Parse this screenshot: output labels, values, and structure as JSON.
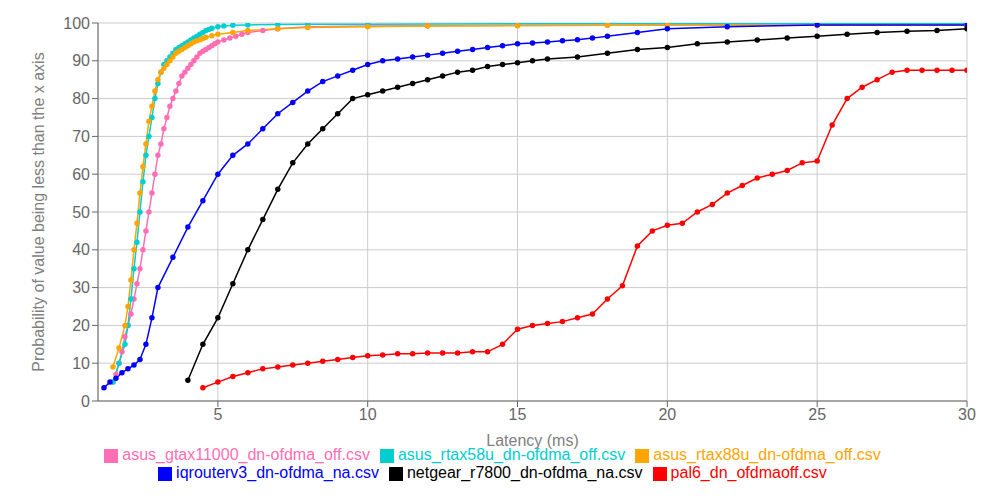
{
  "chart_data": {
    "type": "line",
    "xlabel": "Latency (ms)",
    "ylabel": "Probability of value being less than the x axis",
    "xlim": [
      1,
      30
    ],
    "ylim": [
      0,
      100
    ],
    "xticks": [
      5,
      10,
      15,
      20,
      25,
      30
    ],
    "yticks": [
      0,
      10,
      20,
      30,
      40,
      50,
      60,
      70,
      80,
      90,
      100
    ],
    "grid": true,
    "legend": "bottom",
    "marker": "circle",
    "series": [
      {
        "name": "asus_gtax11000_dn-ofdma_off.csv",
        "color": "#FF6EB4",
        "x": [
          1.5,
          1.6,
          1.7,
          1.8,
          1.9,
          2.0,
          2.1,
          2.2,
          2.3,
          2.4,
          2.5,
          2.6,
          2.7,
          2.8,
          2.9,
          3.0,
          3.1,
          3.2,
          3.3,
          3.4,
          3.5,
          3.6,
          3.7,
          3.8,
          3.9,
          4.0,
          4.1,
          4.2,
          4.3,
          4.4,
          4.5,
          4.6,
          4.7,
          4.8,
          4.9,
          5.0,
          5.2,
          5.4,
          5.6,
          5.8,
          6.0,
          6.5,
          7.0,
          8.0,
          10.0,
          12.0,
          15.0,
          18.0,
          20.0,
          25.0,
          30.0
        ],
        "values": [
          5.0,
          7.0,
          10.0,
          13.0,
          17.0,
          20.0,
          23.0,
          27.0,
          31.0,
          35.0,
          40.0,
          45.0,
          50.0,
          55.0,
          60.0,
          65.0,
          68.0,
          72.0,
          75.0,
          78.0,
          80.0,
          82.0,
          84.0,
          86.0,
          87.0,
          88.0,
          89.0,
          90.0,
          91.0,
          92.0,
          92.5,
          93.0,
          93.5,
          94.0,
          94.5,
          95.0,
          95.5,
          96.0,
          96.5,
          97.0,
          97.5,
          98.0,
          98.5,
          99.0,
          99.2,
          99.3,
          99.4,
          99.4,
          99.5,
          99.5,
          99.5
        ]
      },
      {
        "name": "asus_rtax58u_dn-ofdma_off.csv",
        "color": "#00CED1",
        "x": [
          1.5,
          1.7,
          1.9,
          2.0,
          2.1,
          2.2,
          2.3,
          2.4,
          2.5,
          2.6,
          2.7,
          2.8,
          2.9,
          3.0,
          3.1,
          3.2,
          3.3,
          3.4,
          3.5,
          3.6,
          3.7,
          3.8,
          3.9,
          4.0,
          4.1,
          4.2,
          4.3,
          4.4,
          4.5,
          4.6,
          4.7,
          4.8,
          5.0,
          5.2,
          5.5,
          6.0,
          7.0,
          8.0,
          10.0,
          15.0,
          18.0,
          20.0,
          22.0,
          25.0,
          30.0
        ],
        "values": [
          5.0,
          10.0,
          15.0,
          20.0,
          27.0,
          35.0,
          42.0,
          50.0,
          58.0,
          65.0,
          70.0,
          75.0,
          80.0,
          84.0,
          87.0,
          89.0,
          90.0,
          91.0,
          92.0,
          93.0,
          93.5,
          94.0,
          94.5,
          95.0,
          95.5,
          96.0,
          96.5,
          97.0,
          97.5,
          98.0,
          98.3,
          98.6,
          99.0,
          99.2,
          99.4,
          99.5,
          99.6,
          99.7,
          99.7,
          99.8,
          99.8,
          99.8,
          99.8,
          99.8,
          99.8
        ]
      },
      {
        "name": "asus_rtax88u_dn-ofdma_off.csv",
        "color": "#FFA500",
        "x": [
          1.5,
          1.7,
          1.9,
          2.0,
          2.1,
          2.2,
          2.3,
          2.4,
          2.5,
          2.6,
          2.7,
          2.8,
          2.9,
          3.0,
          3.1,
          3.2,
          3.3,
          3.4,
          3.5,
          3.6,
          3.7,
          3.8,
          3.9,
          4.0,
          4.1,
          4.2,
          4.3,
          4.4,
          4.5,
          4.6,
          4.8,
          5.0,
          5.5,
          6.0,
          7.0,
          8.0,
          10.0,
          12.0,
          15.0,
          18.0,
          20.0,
          25.0,
          30.0
        ],
        "values": [
          9.0,
          14.0,
          20.0,
          25.0,
          32.0,
          40.0,
          47.0,
          55.0,
          62.0,
          68.0,
          74.0,
          78.0,
          82.0,
          85.0,
          87.0,
          88.0,
          89.0,
          90.0,
          91.0,
          92.0,
          92.5,
          93.0,
          93.5,
          94.0,
          94.5,
          95.0,
          95.3,
          95.6,
          95.9,
          96.2,
          96.6,
          97.0,
          97.5,
          98.0,
          98.5,
          98.8,
          99.0,
          99.2,
          99.3,
          99.4,
          99.4,
          99.4,
          99.4
        ]
      },
      {
        "name": "iqrouterv3_dn-ofdma_na.csv",
        "color": "#0000FF",
        "x": [
          1.2,
          1.4,
          1.6,
          1.8,
          2.0,
          2.2,
          2.4,
          2.6,
          2.8,
          3.0,
          3.5,
          4.0,
          4.5,
          5.0,
          5.5,
          6.0,
          6.5,
          7.0,
          7.5,
          8.0,
          8.5,
          9.0,
          9.5,
          10.0,
          10.5,
          11.0,
          11.5,
          12.0,
          12.5,
          13.0,
          13.5,
          14.0,
          14.5,
          15.0,
          15.5,
          16.0,
          16.5,
          17.0,
          17.5,
          18.0,
          19.0,
          20.0,
          22.0,
          25.0,
          30.0
        ],
        "values": [
          3.5,
          5.0,
          6.0,
          7.5,
          8.5,
          9.5,
          11.0,
          15.0,
          22.0,
          30.0,
          38.0,
          46.0,
          53.0,
          60.0,
          65.0,
          68.0,
          72.0,
          76.0,
          79.0,
          82.0,
          84.5,
          86.0,
          87.5,
          89.0,
          90.0,
          90.5,
          91.0,
          91.5,
          92.0,
          92.5,
          93.0,
          93.5,
          94.0,
          94.5,
          94.7,
          95.0,
          95.3,
          95.6,
          96.0,
          96.5,
          97.5,
          98.5,
          99.0,
          99.5,
          99.5
        ]
      },
      {
        "name": "netgear_r7800_dn-ofdma_na.csv",
        "color": "#000000",
        "x": [
          4.0,
          4.5,
          5.0,
          5.5,
          6.0,
          6.5,
          7.0,
          7.5,
          8.0,
          8.5,
          9.0,
          9.5,
          10.0,
          10.5,
          11.0,
          11.5,
          12.0,
          12.5,
          13.0,
          13.5,
          14.0,
          14.5,
          15.0,
          15.5,
          16.0,
          17.0,
          18.0,
          19.0,
          20.0,
          21.0,
          22.0,
          23.0,
          24.0,
          25.0,
          26.0,
          27.0,
          28.0,
          29.0,
          30.0
        ],
        "values": [
          5.5,
          15.0,
          22.0,
          31.0,
          40.0,
          48.0,
          56.0,
          63.0,
          68.0,
          72.0,
          76.0,
          80.0,
          81.0,
          82.0,
          83.0,
          84.0,
          85.0,
          86.0,
          87.0,
          87.5,
          88.5,
          89.0,
          89.5,
          90.0,
          90.5,
          91.0,
          92.0,
          93.0,
          93.5,
          94.5,
          95.0,
          95.5,
          96.0,
          96.5,
          97.0,
          97.5,
          97.8,
          98.0,
          98.5
        ]
      },
      {
        "name": "pal6_dn_ofdmaoff.csv",
        "color": "#FF0000",
        "x": [
          4.5,
          5.0,
          5.5,
          6.0,
          6.5,
          7.0,
          7.5,
          8.0,
          8.5,
          9.0,
          9.5,
          10.0,
          10.5,
          11.0,
          11.5,
          12.0,
          12.5,
          13.0,
          13.5,
          14.0,
          14.5,
          15.0,
          15.5,
          16.0,
          16.5,
          17.0,
          17.5,
          18.0,
          18.5,
          19.0,
          19.5,
          20.0,
          20.5,
          21.0,
          21.5,
          22.0,
          22.5,
          23.0,
          23.5,
          24.0,
          24.5,
          25.0,
          25.5,
          26.0,
          26.5,
          27.0,
          27.5,
          28.0,
          28.5,
          29.0,
          29.5,
          30.0
        ],
        "values": [
          3.5,
          5.0,
          6.5,
          7.5,
          8.5,
          9.0,
          9.5,
          10.0,
          10.5,
          11.0,
          11.5,
          12.0,
          12.2,
          12.5,
          12.5,
          12.7,
          12.7,
          12.7,
          13.0,
          13.0,
          15.0,
          19.0,
          20.0,
          20.5,
          21.0,
          22.0,
          23.0,
          27.0,
          30.5,
          41.0,
          45.0,
          46.5,
          47.0,
          50.0,
          52.0,
          55.0,
          57.0,
          59.0,
          60.0,
          61.0,
          63.0,
          63.5,
          73.0,
          80.0,
          83.0,
          85.0,
          87.0,
          87.5,
          87.5,
          87.5,
          87.5,
          87.5
        ]
      }
    ]
  }
}
